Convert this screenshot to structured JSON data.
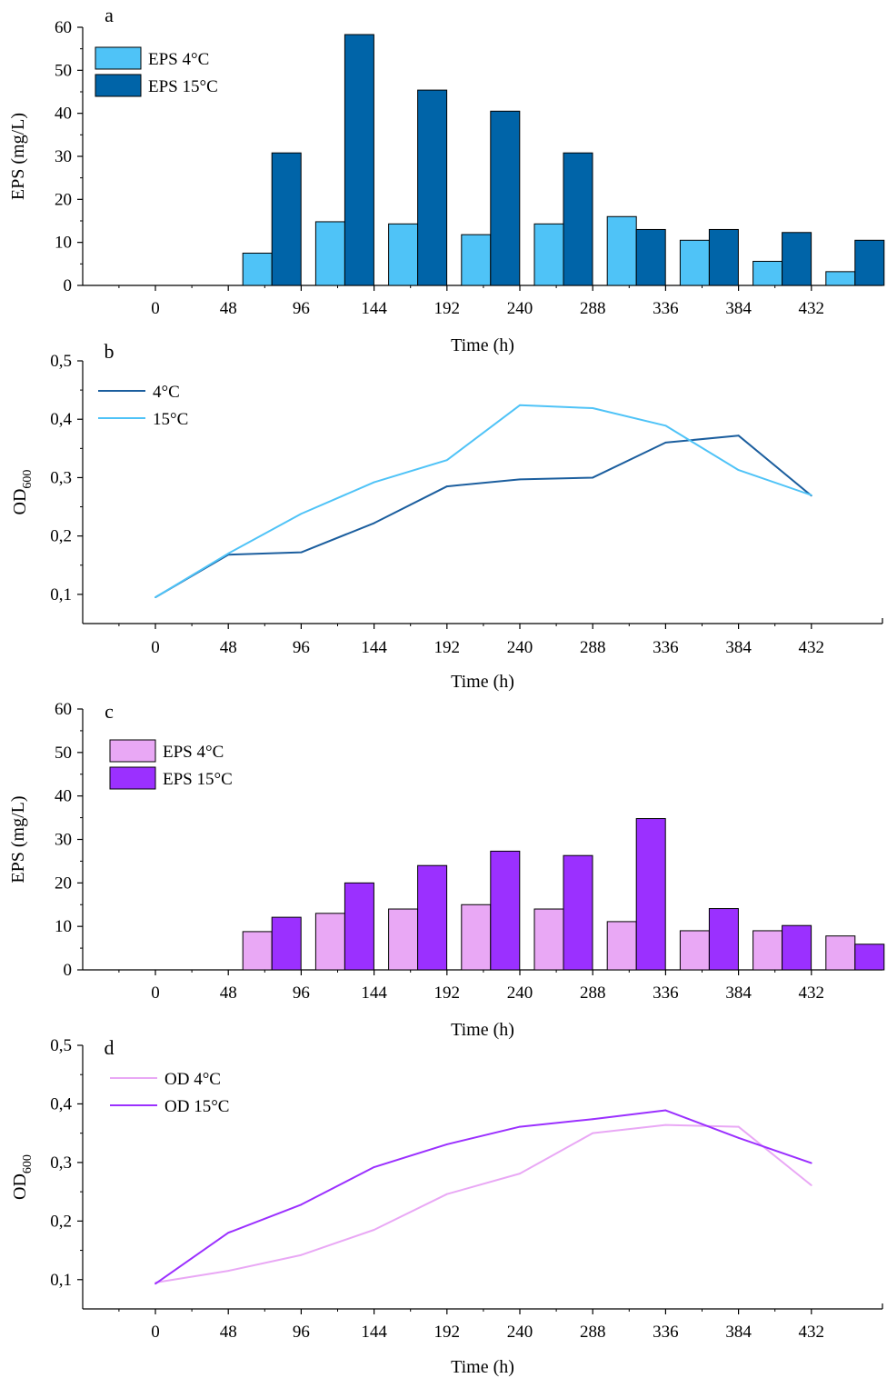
{
  "chart_data": [
    {
      "panel_label": "a",
      "type": "bar",
      "categories": [
        "0",
        "48",
        "96",
        "144",
        "192",
        "240",
        "288",
        "336",
        "384",
        "432"
      ],
      "series": [
        {
          "name": "EPS 4°C",
          "color": "#4FC3F7",
          "values": [
            0,
            7.5,
            14.8,
            14.3,
            11.8,
            14.3,
            16.0,
            10.5,
            5.6,
            3.2
          ]
        },
        {
          "name": "EPS 15°C",
          "color": "#0064A8",
          "values": [
            0,
            30.8,
            58.3,
            45.4,
            40.5,
            30.8,
            13.0,
            13.0,
            12.3,
            10.5
          ]
        }
      ],
      "xlabel": "Time (h)",
      "ylabel": "EPS (mg/L)",
      "ylim": [
        0,
        60
      ],
      "yticks": [
        "0",
        "10",
        "20",
        "30",
        "40",
        "50",
        "60"
      ],
      "legend_position": "top-left",
      "grid": false
    },
    {
      "panel_label": "b",
      "type": "line",
      "x": [
        0,
        48,
        96,
        144,
        192,
        240,
        288,
        336,
        384,
        432
      ],
      "xticks": [
        "0",
        "48",
        "96",
        "144",
        "192",
        "240",
        "288",
        "336",
        "384",
        "432"
      ],
      "series": [
        {
          "name": "4°C",
          "color": "#1B5E9E",
          "values": [
            0.095,
            0.168,
            0.172,
            0.222,
            0.285,
            0.297,
            0.3,
            0.36,
            0.372,
            0.269
          ]
        },
        {
          "name": "15°C",
          "color": "#4FC3F7",
          "values": [
            0.095,
            0.17,
            0.238,
            0.292,
            0.33,
            0.424,
            0.419,
            0.389,
            0.313,
            0.27
          ]
        }
      ],
      "xlabel": "Time (h)",
      "ylabel_main": "OD",
      "ylabel_sub": "600",
      "ylim": [
        0.05,
        0.5
      ],
      "yticks": [
        "0,1",
        "0,2",
        "0,3",
        "0,4",
        "0,5"
      ],
      "legend_position": "top-left",
      "grid": false
    },
    {
      "panel_label": "c",
      "type": "bar",
      "categories": [
        "0",
        "48",
        "96",
        "144",
        "192",
        "240",
        "288",
        "336",
        "384",
        "432"
      ],
      "series": [
        {
          "name": "EPS 4°C",
          "color": "#E9A8F5",
          "values": [
            0,
            8.8,
            13.0,
            14.0,
            15.0,
            14.0,
            11.1,
            9.0,
            9.0,
            7.8
          ]
        },
        {
          "name": "EPS 15°C",
          "color": "#9B30FF",
          "values": [
            0,
            12.1,
            20.0,
            24.0,
            27.3,
            26.3,
            34.8,
            14.1,
            10.2,
            5.9
          ]
        }
      ],
      "xlabel": "Time (h)",
      "ylabel": "EPS (mg/L)",
      "ylim": [
        0,
        60
      ],
      "yticks": [
        "0",
        "10",
        "20",
        "30",
        "40",
        "50",
        "60"
      ],
      "legend_position": "top-left",
      "grid": false
    },
    {
      "panel_label": "d",
      "type": "line",
      "x": [
        0,
        48,
        96,
        144,
        192,
        240,
        288,
        336,
        384,
        432
      ],
      "xticks": [
        "0",
        "48",
        "96",
        "144",
        "192",
        "240",
        "288",
        "336",
        "384",
        "432"
      ],
      "series": [
        {
          "name": "OD 4°C",
          "color": "#E9A8F5",
          "values": [
            0.095,
            0.115,
            0.142,
            0.185,
            0.246,
            0.281,
            0.35,
            0.364,
            0.361,
            0.261
          ]
        },
        {
          "name": "OD 15°C",
          "color": "#9B30FF",
          "values": [
            0.093,
            0.18,
            0.228,
            0.292,
            0.331,
            0.361,
            0.374,
            0.389,
            0.342,
            0.299
          ]
        }
      ],
      "xlabel": "Time (h)",
      "ylabel_main": "OD",
      "ylabel_sub": "600",
      "ylim": [
        0.05,
        0.5
      ],
      "yticks": [
        "0,1",
        "0,2",
        "0,3",
        "0,4",
        "0,5"
      ],
      "legend_position": "top-left",
      "grid": false
    }
  ]
}
